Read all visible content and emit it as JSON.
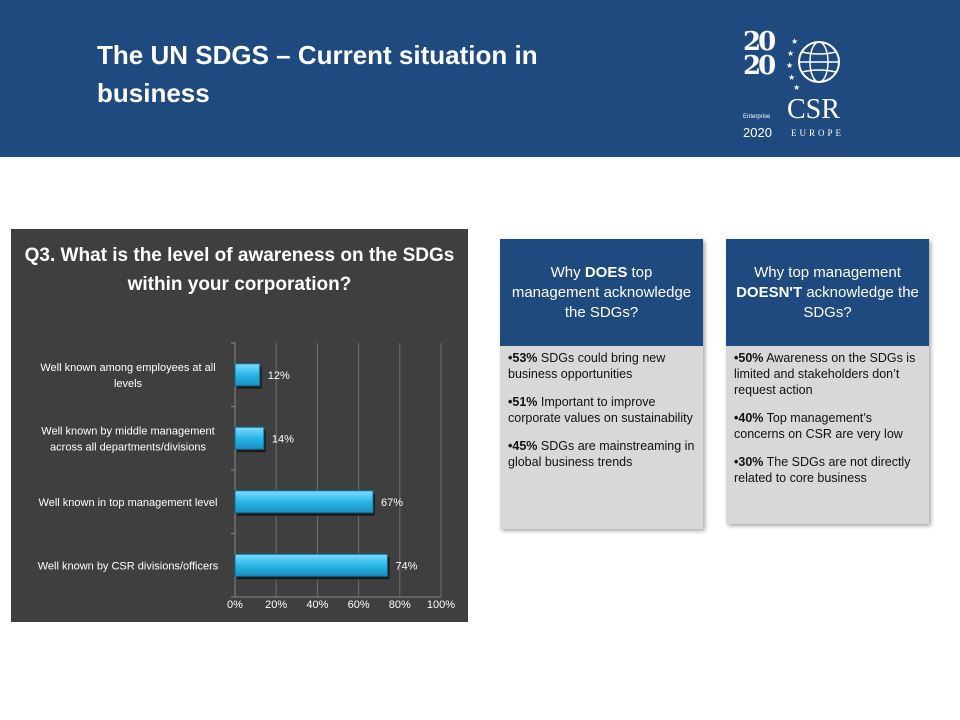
{
  "header": {
    "title": "The UN SDGS – Current situation in business",
    "logo": {
      "digits": "20 20",
      "enterprise": "Enterprise",
      "year": "2020",
      "csr": "CSR",
      "europe": "EUROPE",
      "icon": "globe-icon"
    }
  },
  "chart_data": {
    "type": "bar",
    "orientation": "horizontal",
    "title": "Q3. What is the level of awareness on the SDGs within your corporation?",
    "categories": [
      "Well known among employees at all levels",
      "Well known by middle management across all departments/divisions",
      "Well known in top management level",
      "Well known by CSR divisions/officers"
    ],
    "values": [
      12,
      14,
      67,
      74
    ],
    "value_labels": [
      "12%",
      "14%",
      "67%",
      "74%"
    ],
    "xlim": [
      0,
      100
    ],
    "x_ticks": [
      "0%",
      "20%",
      "40%",
      "60%",
      "80%",
      "100%"
    ],
    "grid": true,
    "bar_color": "#29b6e8",
    "background": "#3f3f3f"
  },
  "why_does": {
    "heading_pre": "Why ",
    "heading_bold": "DOES",
    "heading_post": " top management acknowledge the SDGs?",
    "items": [
      {
        "pct": "•53%",
        "text": " SDGs could bring new business opportunities"
      },
      {
        "pct": "•51%",
        "text": " Important to improve corporate values on sustainability"
      },
      {
        "pct": "•45%",
        "text": " SDGs are mainstreaming in global business trends"
      }
    ]
  },
  "why_doesnt": {
    "heading_pre": "Why top management ",
    "heading_bold": "DOESN'T",
    "heading_post": " acknowledge the SDGs?",
    "items": [
      {
        "pct": "•50%",
        "text": " Awareness on the SDGs is limited and stakeholders don’t request action"
      },
      {
        "pct": "•40%",
        "text": " Top management’s concerns on CSR are very low"
      },
      {
        "pct": "•30%",
        "text": " The SDGs are not directly related to core business"
      }
    ]
  },
  "colors": {
    "header_bg": "#1e4a80",
    "box_bg": "#d8d8d8",
    "chart_bg": "#3f3f3f"
  }
}
